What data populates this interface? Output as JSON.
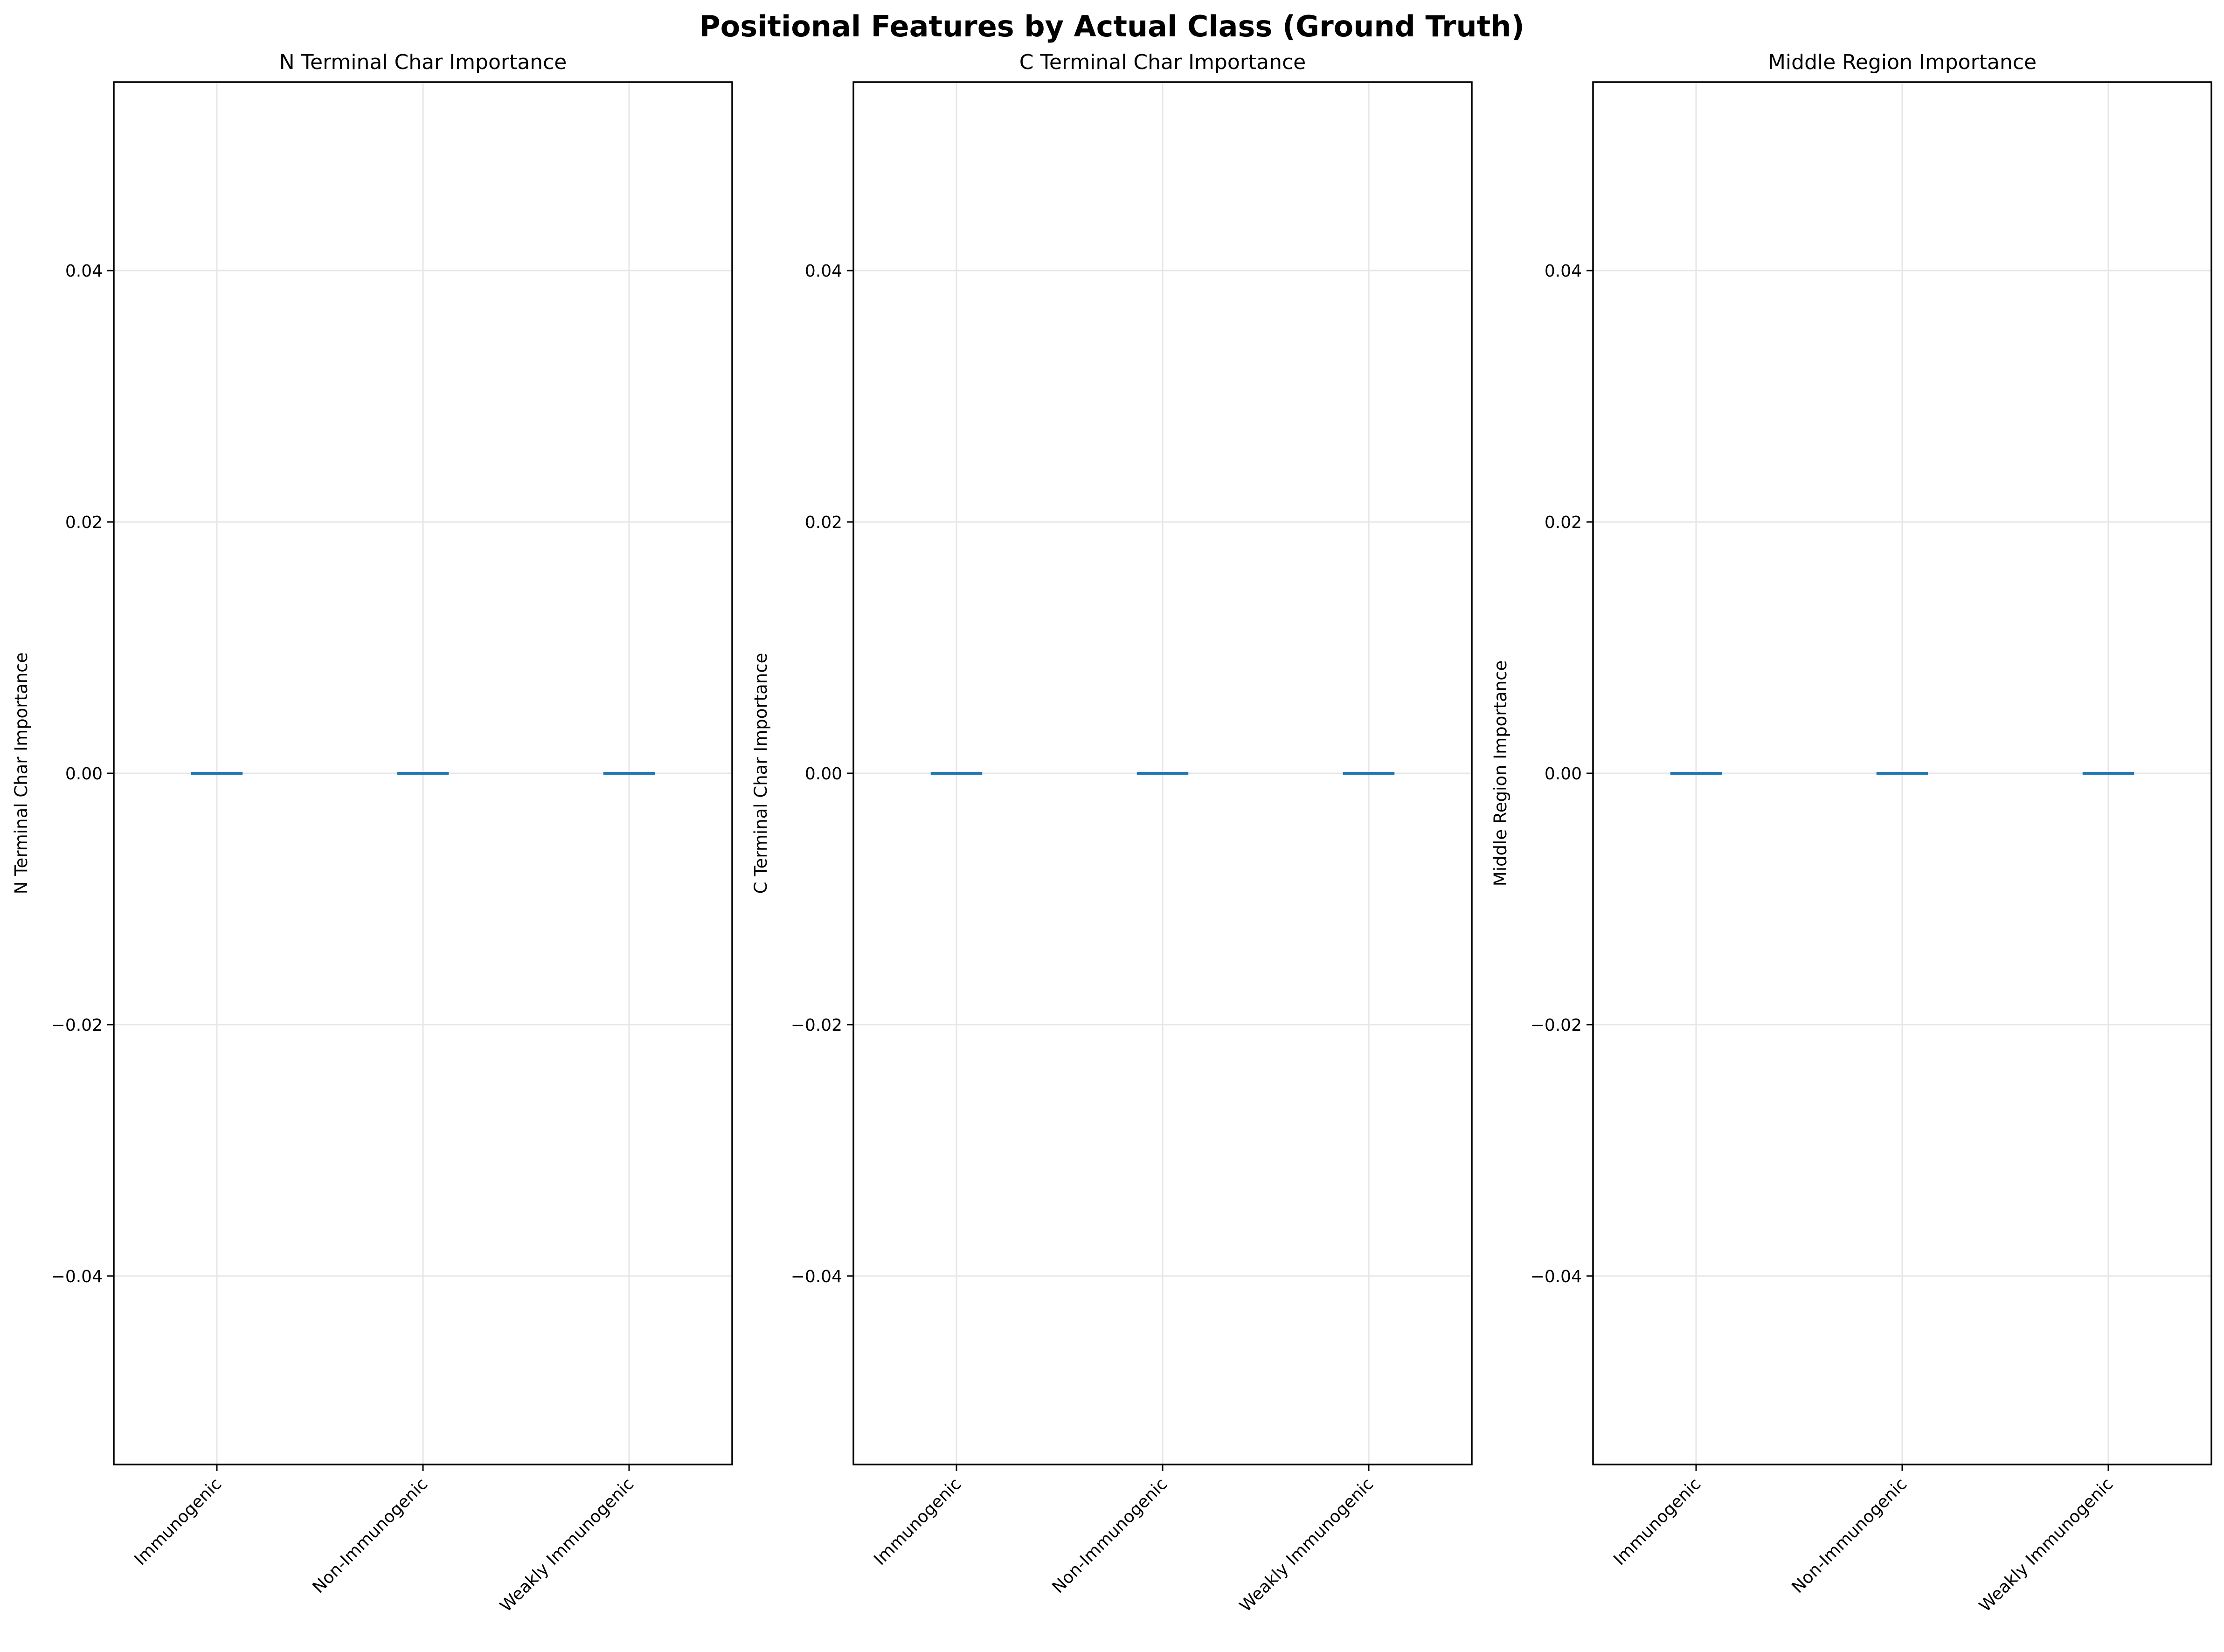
{
  "figure_title": "Positional Features by Actual Class (Ground Truth)",
  "colors": {
    "box": "#1f77b4",
    "grid": "#e6e6e6",
    "axis": "#000000",
    "background": "#ffffff"
  },
  "chart_data": [
    {
      "type": "box",
      "title": "N Terminal Char Importance",
      "xlabel": "",
      "ylabel": "N Terminal Char Importance",
      "categories": [
        "Immunogenic",
        "Non-Immunogenic",
        "Weakly Immunogenic"
      ],
      "values": [
        0,
        0,
        0
      ],
      "ylim": [
        -0.055,
        0.055
      ],
      "yticks": [
        -0.04,
        -0.02,
        0.0,
        0.02,
        0.04
      ],
      "ytick_labels": [
        "−0.04",
        "−0.02",
        "0.00",
        "0.02",
        "0.04"
      ],
      "grid": true
    },
    {
      "type": "box",
      "title": "C Terminal Char Importance",
      "xlabel": "",
      "ylabel": "C Terminal Char Importance",
      "categories": [
        "Immunogenic",
        "Non-Immunogenic",
        "Weakly Immunogenic"
      ],
      "values": [
        0,
        0,
        0
      ],
      "ylim": [
        -0.055,
        0.055
      ],
      "yticks": [
        -0.04,
        -0.02,
        0.0,
        0.02,
        0.04
      ],
      "ytick_labels": [
        "−0.04",
        "−0.02",
        "0.00",
        "0.02",
        "0.04"
      ],
      "grid": true
    },
    {
      "type": "box",
      "title": "Middle Region Importance",
      "xlabel": "",
      "ylabel": "Middle Region Importance",
      "categories": [
        "Immunogenic",
        "Non-Immunogenic",
        "Weakly Immunogenic"
      ],
      "values": [
        0,
        0,
        0
      ],
      "ylim": [
        -0.055,
        0.055
      ],
      "yticks": [
        -0.04,
        -0.02,
        0.0,
        0.02,
        0.04
      ],
      "ytick_labels": [
        "−0.04",
        "−0.02",
        "0.00",
        "0.02",
        "0.04"
      ],
      "grid": true
    }
  ]
}
